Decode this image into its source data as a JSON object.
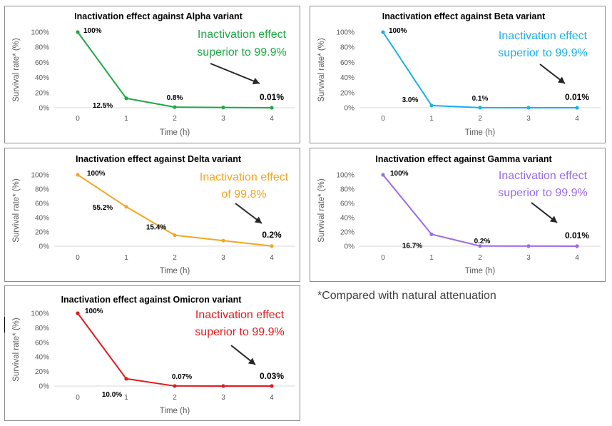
{
  "chart_data": [
    {
      "type": "line",
      "title": "Inactivation effect against Alpha variant",
      "xlabel": "Time (h)",
      "ylabel": "Survival rate* (%)",
      "x": [
        0,
        1,
        2,
        3,
        4
      ],
      "y_ticks": [
        "100%",
        "80%",
        "60%",
        "40%",
        "20%",
        "0%"
      ],
      "ylim": [
        0,
        100
      ],
      "values": [
        100,
        12.5,
        0.8,
        0.4,
        0.01
      ],
      "point_labels": [
        "100%",
        "12.5%",
        "0.8%",
        "",
        "0.01%"
      ],
      "color": "#1fa846",
      "annotation": "Inactivation effect superior to 99.9%",
      "grid": false
    },
    {
      "type": "line",
      "title": "Inactivation effect against Beta variant",
      "xlabel": "Time (h)",
      "ylabel": "Survival rate* (%)",
      "x": [
        0,
        1,
        2,
        3,
        4
      ],
      "y_ticks": [
        "100%",
        "80%",
        "60%",
        "40%",
        "20%",
        "0%"
      ],
      "ylim": [
        0,
        100
      ],
      "values": [
        100,
        3.0,
        0.1,
        0.05,
        0.01
      ],
      "point_labels": [
        "100%",
        "3.0%",
        "0.1%",
        "",
        "0.01%"
      ],
      "color": "#1ab0e8",
      "annotation": "Inactivation effect superior to 99.9%",
      "grid": false
    },
    {
      "type": "line",
      "title": "Inactivation effect against Delta variant",
      "xlabel": "Time (h)",
      "ylabel": "Survival rate* (%)",
      "x": [
        0,
        1,
        2,
        3,
        4
      ],
      "y_ticks": [
        "100%",
        "80%",
        "60%",
        "40%",
        "20%",
        "0%"
      ],
      "ylim": [
        0,
        100
      ],
      "values": [
        100,
        55.2,
        15.4,
        7.8,
        0.2
      ],
      "point_labels": [
        "100%",
        "55.2%",
        "15.4%",
        "",
        "0.2%"
      ],
      "color": "#f5a623",
      "annotation": "Inactivation effect of 99.8%",
      "grid": false
    },
    {
      "type": "line",
      "title": "Inactivation effect against Gamma variant",
      "xlabel": "Time (h)",
      "ylabel": "Survival rate* (%)",
      "x": [
        0,
        1,
        2,
        3,
        4
      ],
      "y_ticks": [
        "100%",
        "80%",
        "60%",
        "40%",
        "20%",
        "0%"
      ],
      "ylim": [
        0,
        100
      ],
      "values": [
        100,
        16.7,
        0.2,
        0.1,
        0.01
      ],
      "point_labels": [
        "100%",
        "16.7%",
        "0.2%",
        "",
        "0.01%"
      ],
      "color": "#9b6be8",
      "annotation": "Inactivation effect superior to 99.9%",
      "grid": false
    },
    {
      "type": "line",
      "title": "Inactivation effect against Omicron variant",
      "xlabel": "Time (h)",
      "ylabel": "Survival rate* (%)",
      "x": [
        0,
        1,
        2,
        3,
        4
      ],
      "y_ticks": [
        "100%",
        "80%",
        "60%",
        "40%",
        "20%",
        "0%"
      ],
      "ylim": [
        0,
        100
      ],
      "values": [
        100,
        10.0,
        0.07,
        0.05,
        0.03
      ],
      "point_labels": [
        "100%",
        "10.0%",
        "0.07%",
        "",
        "0.03%"
      ],
      "color": "#e31a1c",
      "annotation": "Inactivation effect superior to 99.9%",
      "grid": false
    }
  ],
  "footnote": "*Compared with natural attenuation"
}
